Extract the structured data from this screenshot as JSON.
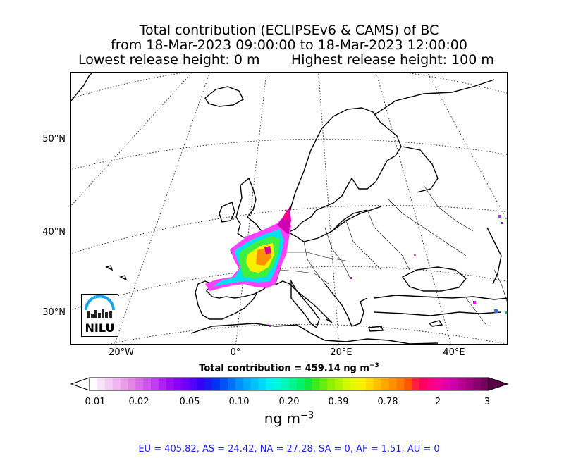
{
  "title": {
    "line1": "Total contribution (ECLIPSEv6 & CAMS) of BC",
    "line2": "from 18-Mar-2023 09:00:00 to 18-Mar-2023 12:00:00",
    "lowest": "Lowest release height: 0 m",
    "highest": "Highest release height: 100 m"
  },
  "map": {
    "lat_labels": [
      "50°N",
      "40°N",
      "30°N"
    ],
    "lon_labels": [
      "20°W",
      "0°",
      "20°E",
      "40°E"
    ]
  },
  "total_contribution": {
    "label": "Total contribution = 459.14 ng m",
    "exponent": "−3"
  },
  "colorbar": {
    "ticks": [
      "0.01",
      "0.02",
      "0.05",
      "0.10",
      "0.20",
      "0.39",
      "0.78",
      "2",
      "3"
    ],
    "unit_prefix": "ng m",
    "unit_exponent": "−3",
    "colors": [
      "#ffffff",
      "#f7e5f7",
      "#f3cdf3",
      "#efb6ef",
      "#e99ee9",
      "#e386e6",
      "#d86ee6",
      "#cc55ea",
      "#bf3cef",
      "#ae22f2",
      "#9c0ff5",
      "#8a00f7",
      "#6f00f8",
      "#5200f8",
      "#3300f5",
      "#1a1af0",
      "#0032f0",
      "#0050f5",
      "#0070f8",
      "#0090fa",
      "#00aafa",
      "#00c2fa",
      "#00d8f8",
      "#00eef0",
      "#00f8da",
      "#00f7b8",
      "#00f590",
      "#00f068",
      "#10e840",
      "#40e820",
      "#68ec10",
      "#90f008",
      "#b0f400",
      "#d0f800",
      "#e8f800",
      "#f8f000",
      "#ffd800",
      "#ffc000",
      "#ffa800",
      "#ff9000",
      "#ff7800",
      "#ff5800",
      "#ff2040",
      "#ff0060",
      "#ff0080",
      "#f2009a",
      "#e000a8",
      "#cc00a8",
      "#b80090",
      "#a00080",
      "#880070",
      "#70005c"
    ]
  },
  "regional_totals": {
    "text": "EU = 405.82,  AS = 24.42,  NA = 27.28,  SA = 0,  AF = 1.51,  AU = 0"
  },
  "logo": {
    "text": "NILU"
  }
}
